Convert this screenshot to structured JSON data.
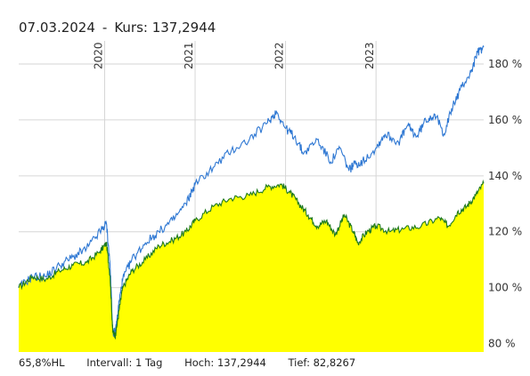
{
  "header": {
    "date": "07.03.2024",
    "separator": "-",
    "price_text": "Kurs: 137,2944"
  },
  "footer": {
    "range": "65,8%HL",
    "interval": "Intervall: 1 Tag",
    "high": "Hoch: 137,2944",
    "low": "Tief: 82,8267"
  },
  "colors": {
    "fill": "#ffff00",
    "primary_line": "#1f7a1f",
    "comparison_line": "#2f78d3",
    "grid": "#d6d6d6",
    "axis_text": "#333333"
  },
  "chart_data": {
    "type": "area",
    "ylim": [
      77,
      187
    ],
    "yticks": [
      80,
      100,
      120,
      140,
      160,
      180
    ],
    "ytick_labels": [
      "80 %",
      "100 %",
      "120 %",
      "140 %",
      "160 %",
      "180 %"
    ],
    "year_labels": [
      {
        "label": "2020",
        "x": 2020.0
      },
      {
        "label": "2021",
        "x": 2021.0
      },
      {
        "label": "2022",
        "x": 2022.0
      },
      {
        "label": "2023",
        "x": 2023.0
      }
    ],
    "xlim": [
      2019.05,
      2024.19
    ],
    "grid": true,
    "series": [
      {
        "role": "primary",
        "filled": true,
        "x": [
          2019.05,
          2019.2,
          2019.35,
          2019.5,
          2019.65,
          2019.8,
          2019.95,
          2020.02,
          2020.06,
          2020.09,
          2020.12,
          2020.16,
          2020.2,
          2020.3,
          2020.45,
          2020.6,
          2020.75,
          2020.9,
          2021.0,
          2021.2,
          2021.4,
          2021.6,
          2021.8,
          2021.95,
          2022.05,
          2022.15,
          2022.25,
          2022.35,
          2022.45,
          2022.55,
          2022.65,
          2022.75,
          2022.8,
          2022.9,
          2023.0,
          2023.15,
          2023.3,
          2023.5,
          2023.7,
          2023.8,
          2023.9,
          2024.0,
          2024.1,
          2024.19
        ],
        "values": [
          100,
          104,
          103,
          106,
          108,
          109,
          113,
          116,
          104,
          84,
          83,
          92,
          100,
          106,
          110,
          115,
          117,
          120,
          124,
          129,
          132,
          133,
          136,
          137,
          134,
          130,
          126,
          122,
          124,
          119,
          126,
          120,
          116,
          120,
          122,
          120,
          121,
          122,
          125,
          122,
          127,
          129,
          133,
          137.3
        ]
      },
      {
        "role": "comparison",
        "filled": false,
        "x": [
          2019.05,
          2019.2,
          2019.35,
          2019.5,
          2019.65,
          2019.8,
          2019.95,
          2020.02,
          2020.06,
          2020.09,
          2020.12,
          2020.16,
          2020.2,
          2020.3,
          2020.45,
          2020.6,
          2020.75,
          2020.9,
          2021.0,
          2021.2,
          2021.4,
          2021.6,
          2021.8,
          2021.9,
          2022.0,
          2022.1,
          2022.2,
          2022.35,
          2022.5,
          2022.6,
          2022.7,
          2022.75,
          2022.85,
          2023.0,
          2023.1,
          2023.25,
          2023.35,
          2023.45,
          2023.55,
          2023.65,
          2023.75,
          2023.85,
          2023.95,
          2024.05,
          2024.12,
          2024.19
        ],
        "values": [
          100,
          104,
          104,
          108,
          111,
          114,
          120,
          123,
          108,
          84,
          84,
          95,
          103,
          110,
          116,
          120,
          124,
          130,
          137,
          143,
          149,
          153,
          159,
          163,
          157,
          154,
          148,
          153,
          145,
          150,
          142,
          144,
          145,
          150,
          155,
          152,
          158,
          154,
          160,
          162,
          155,
          165,
          172,
          177,
          184,
          186
        ]
      }
    ]
  }
}
